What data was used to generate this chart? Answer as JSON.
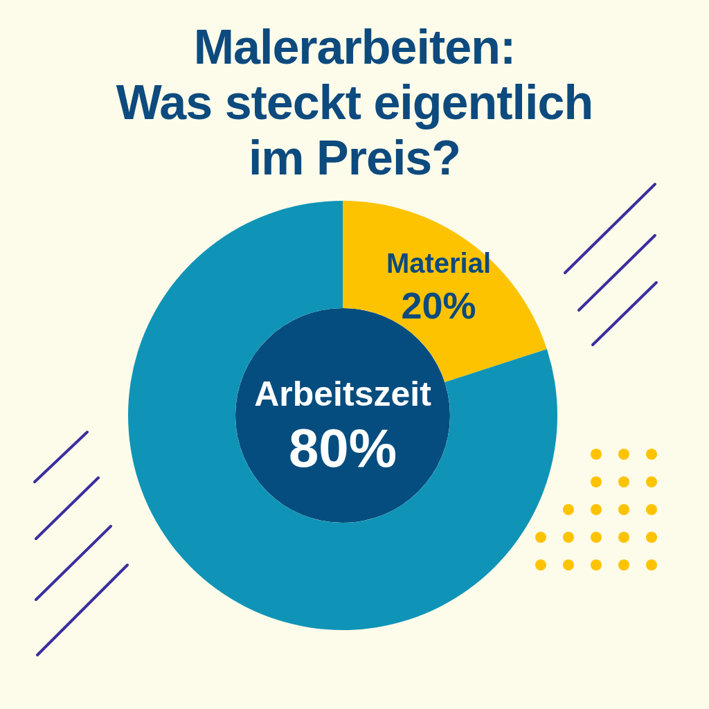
{
  "chart_data": {
    "type": "donut",
    "title": "Malerarbeiten:\nWas steckt eigentlich\nim Preis?",
    "categories": [
      "Material",
      "Arbeitszeit"
    ],
    "values": [
      20,
      80
    ],
    "colors": [
      "#fdc300",
      "#0f94b7"
    ],
    "value_labels": [
      "20%",
      "80%"
    ],
    "legend": false
  }
}
